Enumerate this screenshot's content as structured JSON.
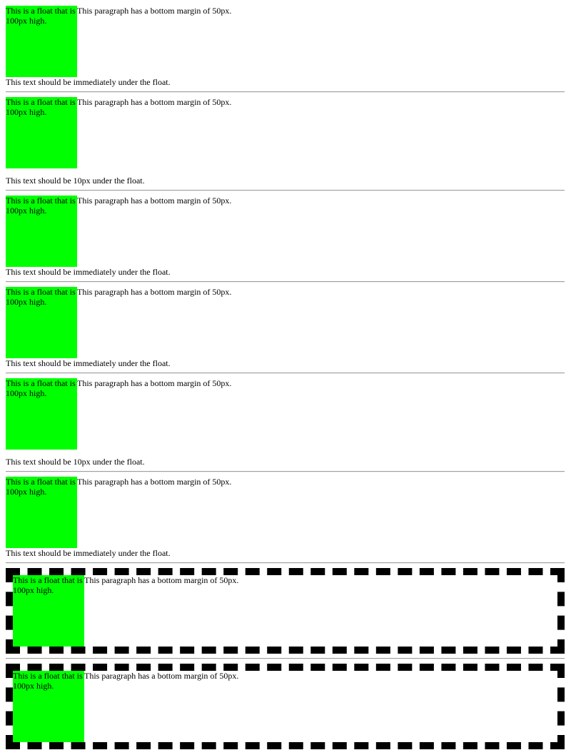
{
  "float_text": "This is a float that is 100px high.",
  "para_text": "This paragraph has a bottom margin of 50px.",
  "under_immediate": "This text should be immediately under the float.",
  "under_10px": "This text should be 10px under the float.",
  "colors": {
    "float_fill": "#00ff00",
    "border": "#000000",
    "rule": "#a0a0a0"
  }
}
